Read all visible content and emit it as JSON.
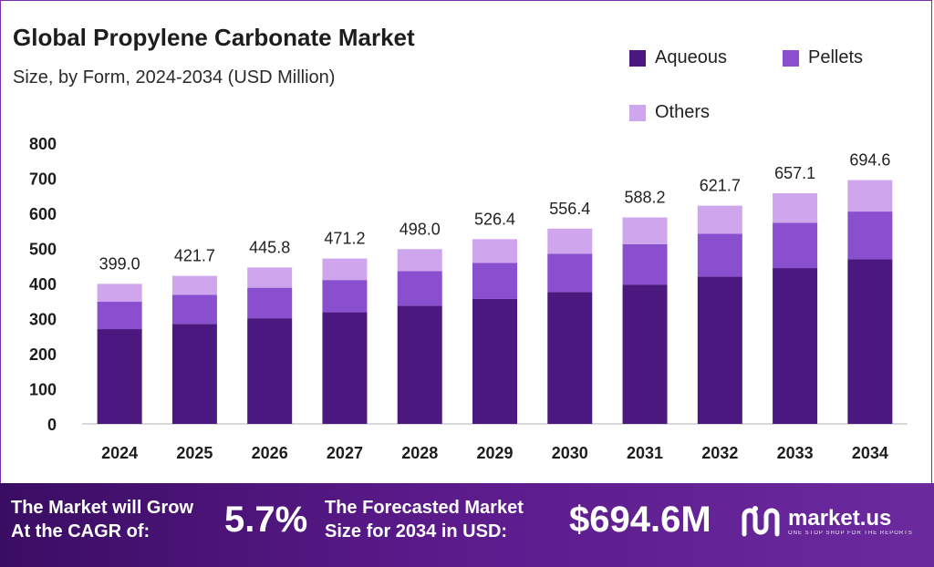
{
  "chart_data": {
    "type": "bar",
    "stacked": true,
    "title": "Global Propylene Carbonate Market",
    "subtitle": "Size, by Form, 2024-2034 (USD Million)",
    "categories": [
      "2024",
      "2025",
      "2026",
      "2027",
      "2028",
      "2029",
      "2030",
      "2031",
      "2032",
      "2033",
      "2034"
    ],
    "totals": [
      "399.0",
      "421.7",
      "445.8",
      "471.2",
      "498.0",
      "526.4",
      "556.4",
      "588.2",
      "621.7",
      "657.1",
      "694.6"
    ],
    "series": [
      {
        "name": "Aqueous",
        "color": "#4b1880",
        "values": [
          270,
          285,
          301,
          318,
          337,
          356,
          376,
          397,
          420,
          444,
          469
        ]
      },
      {
        "name": "Pellets",
        "color": "#8a4fcf",
        "values": [
          78,
          83,
          87,
          92,
          98,
          103,
          109,
          115,
          122,
          129,
          136
        ]
      },
      {
        "name": "Others",
        "color": "#cfa6ee",
        "values": [
          51,
          53.7,
          57.8,
          61.2,
          63,
          67.4,
          71.4,
          76.2,
          79.7,
          84.1,
          89.6
        ]
      }
    ],
    "yticks": [
      "0",
      "100",
      "200",
      "300",
      "400",
      "500",
      "600",
      "700",
      "800"
    ],
    "ylim": [
      0,
      800
    ],
    "grid": false,
    "legend": "top-right"
  },
  "footer": {
    "grow_line1": "The Market will Grow",
    "grow_line2": "At the CAGR of:",
    "cagr": "5.7%",
    "forecast_line1": "The Forecasted Market",
    "forecast_line2": "Size for 2034 in USD:",
    "forecast_value": "$694.6M",
    "brand_name": "market.us",
    "brand_tagline": "ONE STOP SHOP FOR THE REPORTS"
  },
  "colors": {
    "border": "#7b2fa8",
    "axis": "#cccccc"
  }
}
